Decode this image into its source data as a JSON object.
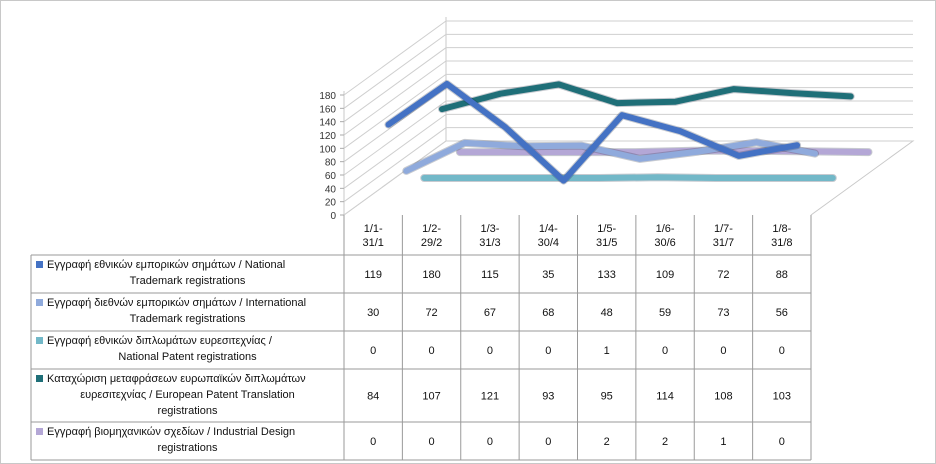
{
  "chart_data": {
    "type": "line",
    "categories": [
      [
        "1/1-",
        "31/1"
      ],
      [
        "1/2-",
        "29/2"
      ],
      [
        "1/3-",
        "31/3"
      ],
      [
        "1/4-",
        "30/4"
      ],
      [
        "1/5-",
        "31/5"
      ],
      [
        "1/6-",
        "30/6"
      ],
      [
        "1/7-",
        "31/7"
      ],
      [
        "1/8-",
        "31/8"
      ]
    ],
    "ylim": [
      0,
      180
    ],
    "yticks": [
      "0",
      "20",
      "40",
      "60",
      "80",
      "100",
      "120",
      "140",
      "160",
      "180"
    ],
    "grid": true,
    "three_d": true,
    "series": [
      {
        "legend_lines": [
          "Εγγραφή  εθνικών  εμπορικών  σημάτων  / National",
          "Trademark registrations"
        ],
        "values": [
          119,
          180,
          115,
          35,
          133,
          109,
          72,
          88
        ],
        "color": "#4472c4"
      },
      {
        "legend_lines": [
          "Εγγραφή  διεθνών  εμπορικών  σημάτων  / International",
          "Trademark registrations"
        ],
        "values": [
          30,
          72,
          67,
          68,
          48,
          59,
          73,
          56
        ],
        "color": "#8faadc"
      },
      {
        "legend_lines": [
          "Εγγραφή  εθνικών  διπλωμάτων  ευρεσιτεχνίας /",
          "National Patent registrations"
        ],
        "values": [
          0,
          0,
          0,
          0,
          1,
          0,
          0,
          0
        ],
        "color": "#72b8c8"
      },
      {
        "legend_lines": [
          "Καταχώριση  μεταφράσεων  ευρωπαϊκών  διπλωμάτων",
          "ευρεσιτεχνίας / European Patent Translation",
          "registrations"
        ],
        "values": [
          84,
          107,
          121,
          93,
          95,
          114,
          108,
          103
        ],
        "color": "#1f6f78"
      },
      {
        "legend_lines": [
          "Εγγραφή  βιομηχανικών  σχεδίων  / Industrial Design",
          "registrations"
        ],
        "values": [
          0,
          0,
          0,
          0,
          2,
          2,
          1,
          0
        ],
        "color": "#b4a7d6"
      }
    ]
  }
}
